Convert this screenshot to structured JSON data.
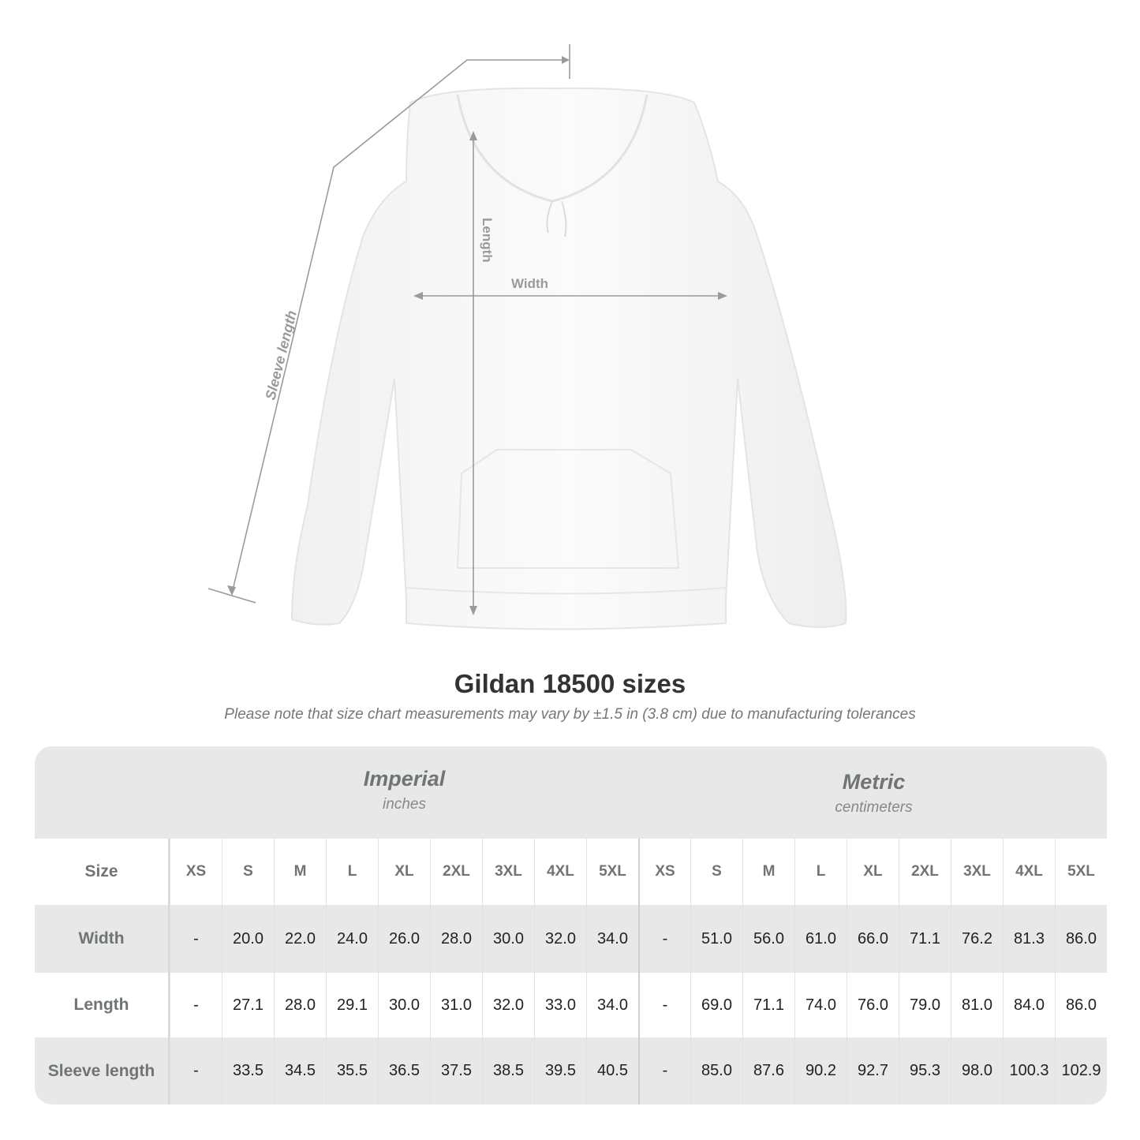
{
  "diagram": {
    "labels": {
      "sleeve": "Sleeve length",
      "length": "Length",
      "width": "Width"
    },
    "line_color": "#9a9a9a"
  },
  "header": {
    "title": "Gildan 18500 sizes",
    "note": "Please note that size chart measurements may vary by ±1.5 in (3.8 cm) due to manufacturing tolerances"
  },
  "table": {
    "imperial": {
      "title": "Imperial",
      "unit": "inches"
    },
    "metric": {
      "title": "Metric",
      "unit": "centimeters"
    },
    "size_label": "Size",
    "sizes": [
      "XS",
      "S",
      "M",
      "L",
      "XL",
      "2XL",
      "3XL",
      "4XL",
      "5XL"
    ],
    "rows": [
      {
        "label": "Width",
        "imperial": [
          "-",
          "20.0",
          "22.0",
          "24.0",
          "26.0",
          "28.0",
          "30.0",
          "32.0",
          "34.0"
        ],
        "metric": [
          "-",
          "51.0",
          "56.0",
          "61.0",
          "66.0",
          "71.1",
          "76.2",
          "81.3",
          "86.0"
        ]
      },
      {
        "label": "Length",
        "imperial": [
          "-",
          "27.1",
          "28.0",
          "29.1",
          "30.0",
          "31.0",
          "32.0",
          "33.0",
          "34.0"
        ],
        "metric": [
          "-",
          "69.0",
          "71.1",
          "74.0",
          "76.0",
          "79.0",
          "81.0",
          "84.0",
          "86.0"
        ]
      },
      {
        "label": "Sleeve length",
        "imperial": [
          "-",
          "33.5",
          "34.5",
          "35.5",
          "36.5",
          "37.5",
          "38.5",
          "39.5",
          "40.5"
        ],
        "metric": [
          "-",
          "85.0",
          "87.6",
          "90.2",
          "92.7",
          "95.3",
          "98.0",
          "100.3",
          "102.9"
        ]
      }
    ]
  }
}
